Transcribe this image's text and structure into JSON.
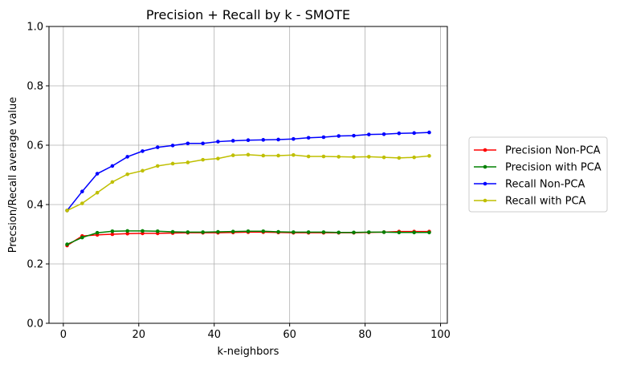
{
  "chart_data": {
    "type": "line",
    "title": "Precision + Recall by k - SMOTE",
    "xlabel": "k-neighbors",
    "ylabel": "Precsion/Recall average value",
    "xlim": [
      -3.8,
      101.8
    ],
    "ylim": [
      0.0,
      1.0
    ],
    "xticks": [
      0,
      20,
      40,
      60,
      80,
      100
    ],
    "yticks": [
      0.0,
      0.2,
      0.4,
      0.6,
      0.8,
      1.0
    ],
    "xtick_labels": [
      "0",
      "20",
      "40",
      "60",
      "80",
      "100"
    ],
    "ytick_labels": [
      "0.0",
      "0.2",
      "0.4",
      "0.6",
      "0.8",
      "1.0"
    ],
    "grid": true,
    "legend_position": "outside-right",
    "x": [
      1,
      5,
      9,
      13,
      17,
      21,
      25,
      29,
      33,
      37,
      41,
      45,
      49,
      53,
      57,
      61,
      65,
      69,
      73,
      77,
      81,
      85,
      89,
      93,
      97
    ],
    "series": [
      {
        "name": "Precision Non-PCA",
        "color": "#ff0000",
        "values": [
          0.262,
          0.294,
          0.298,
          0.3,
          0.302,
          0.303,
          0.303,
          0.304,
          0.305,
          0.305,
          0.305,
          0.306,
          0.307,
          0.307,
          0.306,
          0.305,
          0.305,
          0.305,
          0.305,
          0.305,
          0.306,
          0.307,
          0.309,
          0.309,
          0.309
        ]
      },
      {
        "name": "Precision with PCA",
        "color": "#008000",
        "values": [
          0.266,
          0.289,
          0.305,
          0.31,
          0.311,
          0.311,
          0.31,
          0.308,
          0.307,
          0.307,
          0.308,
          0.309,
          0.31,
          0.31,
          0.308,
          0.307,
          0.307,
          0.307,
          0.306,
          0.306,
          0.307,
          0.307,
          0.306,
          0.306,
          0.306
        ]
      },
      {
        "name": "Recall Non-PCA",
        "color": "#0000ff",
        "values": [
          0.38,
          0.444,
          0.504,
          0.53,
          0.561,
          0.58,
          0.593,
          0.599,
          0.606,
          0.606,
          0.612,
          0.615,
          0.617,
          0.618,
          0.619,
          0.621,
          0.625,
          0.627,
          0.631,
          0.632,
          0.636,
          0.637,
          0.64,
          0.641,
          0.643
        ]
      },
      {
        "name": "Recall with PCA",
        "color": "#bfbf00",
        "values": [
          0.38,
          0.404,
          0.44,
          0.476,
          0.502,
          0.514,
          0.53,
          0.538,
          0.542,
          0.551,
          0.555,
          0.566,
          0.568,
          0.565,
          0.565,
          0.567,
          0.562,
          0.562,
          0.561,
          0.56,
          0.561,
          0.559,
          0.557,
          0.559,
          0.564
        ]
      }
    ]
  }
}
